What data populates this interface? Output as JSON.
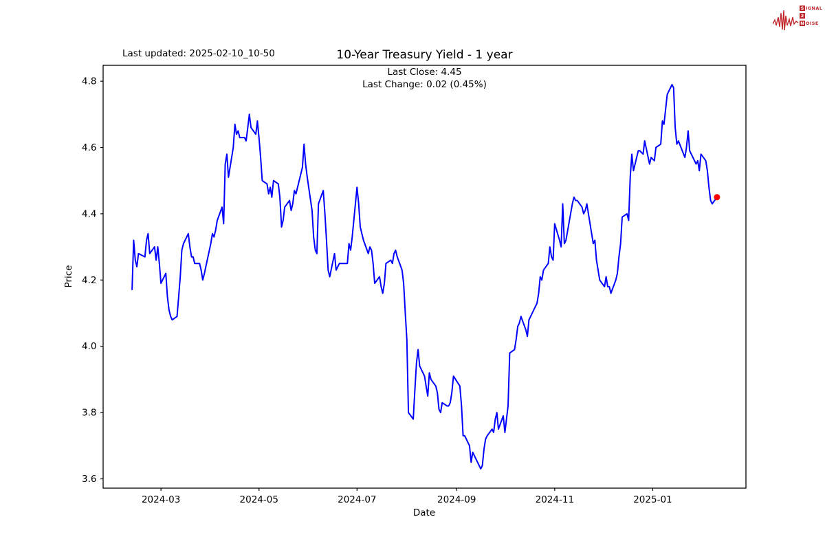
{
  "page": {
    "last_updated": "Last updated: 2025-02-10_10-50",
    "title": "10-Year Treasury Yield - 1 year",
    "subtitle_close": "Last Close: 4.45",
    "subtitle_change": "Last Change: 0.02 (0.45%)"
  },
  "logo": {
    "box1": "S",
    "rest1": "IGNAL",
    "box2": "2",
    "box3": "N",
    "rest3": "OISE",
    "color": "#c1272d"
  },
  "chart_data": {
    "type": "line",
    "title": "10-Year Treasury Yield - 1 year",
    "subtitle": [
      "Last Close: 4.45",
      "Last Change: 0.02 (0.45%)"
    ],
    "xlabel": "Date",
    "ylabel": "Price",
    "grid": false,
    "line_color": "#0000ff",
    "last_point_color": "#ff0000",
    "last_close": 4.45,
    "last_change": 0.02,
    "last_change_pct": "0.45%",
    "ylim": [
      3.572,
      4.848
    ],
    "xlim": [
      "2024-01-25",
      "2025-02-28"
    ],
    "y_ticks": [
      3.6,
      3.8,
      4.0,
      4.2,
      4.4,
      4.6,
      4.8
    ],
    "x_ticks": [
      {
        "label": "2024-03",
        "date": "2024-03-01"
      },
      {
        "label": "2024-05",
        "date": "2024-05-01"
      },
      {
        "label": "2024-07",
        "date": "2024-07-01"
      },
      {
        "label": "2024-09",
        "date": "2024-09-01"
      },
      {
        "label": "2024-11",
        "date": "2024-11-01"
      },
      {
        "label": "2025-01",
        "date": "2025-01-01"
      }
    ],
    "dates": [
      "2024-02-12",
      "2024-02-13",
      "2024-02-14",
      "2024-02-15",
      "2024-02-16",
      "2024-02-20",
      "2024-02-21",
      "2024-02-22",
      "2024-02-23",
      "2024-02-26",
      "2024-02-27",
      "2024-02-28",
      "2024-02-29",
      "2024-03-01",
      "2024-03-04",
      "2024-03-05",
      "2024-03-06",
      "2024-03-07",
      "2024-03-08",
      "2024-03-11",
      "2024-03-12",
      "2024-03-13",
      "2024-03-14",
      "2024-03-15",
      "2024-03-18",
      "2024-03-19",
      "2024-03-20",
      "2024-03-21",
      "2024-03-22",
      "2024-03-25",
      "2024-03-26",
      "2024-03-27",
      "2024-03-28",
      "2024-04-01",
      "2024-04-02",
      "2024-04-03",
      "2024-04-04",
      "2024-04-05",
      "2024-04-08",
      "2024-04-09",
      "2024-04-10",
      "2024-04-11",
      "2024-04-12",
      "2024-04-15",
      "2024-04-16",
      "2024-04-17",
      "2024-04-18",
      "2024-04-19",
      "2024-04-22",
      "2024-04-23",
      "2024-04-24",
      "2024-04-25",
      "2024-04-26",
      "2024-04-29",
      "2024-04-30",
      "2024-05-01",
      "2024-05-02",
      "2024-05-03",
      "2024-05-06",
      "2024-05-07",
      "2024-05-08",
      "2024-05-09",
      "2024-05-10",
      "2024-05-13",
      "2024-05-14",
      "2024-05-15",
      "2024-05-16",
      "2024-05-17",
      "2024-05-20",
      "2024-05-21",
      "2024-05-22",
      "2024-05-23",
      "2024-05-24",
      "2024-05-28",
      "2024-05-29",
      "2024-05-30",
      "2024-05-31",
      "2024-06-03",
      "2024-06-04",
      "2024-06-05",
      "2024-06-06",
      "2024-06-07",
      "2024-06-10",
      "2024-06-11",
      "2024-06-12",
      "2024-06-13",
      "2024-06-14",
      "2024-06-17",
      "2024-06-18",
      "2024-06-20",
      "2024-06-21",
      "2024-06-24",
      "2024-06-25",
      "2024-06-26",
      "2024-06-27",
      "2024-06-28",
      "2024-07-01",
      "2024-07-02",
      "2024-07-03",
      "2024-07-05",
      "2024-07-08",
      "2024-07-09",
      "2024-07-10",
      "2024-07-11",
      "2024-07-12",
      "2024-07-15",
      "2024-07-16",
      "2024-07-17",
      "2024-07-18",
      "2024-07-19",
      "2024-07-22",
      "2024-07-23",
      "2024-07-24",
      "2024-07-25",
      "2024-07-26",
      "2024-07-29",
      "2024-07-30",
      "2024-07-31",
      "2024-08-01",
      "2024-08-02",
      "2024-08-05",
      "2024-08-06",
      "2024-08-07",
      "2024-08-08",
      "2024-08-09",
      "2024-08-12",
      "2024-08-13",
      "2024-08-14",
      "2024-08-15",
      "2024-08-16",
      "2024-08-19",
      "2024-08-20",
      "2024-08-21",
      "2024-08-22",
      "2024-08-23",
      "2024-08-26",
      "2024-08-27",
      "2024-08-28",
      "2024-08-29",
      "2024-08-30",
      "2024-09-03",
      "2024-09-04",
      "2024-09-05",
      "2024-09-06",
      "2024-09-09",
      "2024-09-10",
      "2024-09-11",
      "2024-09-12",
      "2024-09-13",
      "2024-09-16",
      "2024-09-17",
      "2024-09-18",
      "2024-09-19",
      "2024-09-20",
      "2024-09-23",
      "2024-09-24",
      "2024-09-25",
      "2024-09-26",
      "2024-09-27",
      "2024-09-30",
      "2024-10-01",
      "2024-10-02",
      "2024-10-03",
      "2024-10-04",
      "2024-10-07",
      "2024-10-08",
      "2024-10-09",
      "2024-10-10",
      "2024-10-11",
      "2024-10-14",
      "2024-10-15",
      "2024-10-16",
      "2024-10-17",
      "2024-10-18",
      "2024-10-21",
      "2024-10-22",
      "2024-10-23",
      "2024-10-24",
      "2024-10-25",
      "2024-10-28",
      "2024-10-29",
      "2024-10-30",
      "2024-10-31",
      "2024-11-01",
      "2024-11-04",
      "2024-11-05",
      "2024-11-06",
      "2024-11-07",
      "2024-11-08",
      "2024-11-12",
      "2024-11-13",
      "2024-11-14",
      "2024-11-15",
      "2024-11-18",
      "2024-11-19",
      "2024-11-20",
      "2024-11-21",
      "2024-11-22",
      "2024-11-25",
      "2024-11-26",
      "2024-11-27",
      "2024-11-29",
      "2024-12-02",
      "2024-12-03",
      "2024-12-04",
      "2024-12-05",
      "2024-12-06",
      "2024-12-09",
      "2024-12-10",
      "2024-12-11",
      "2024-12-12",
      "2024-12-13",
      "2024-12-16",
      "2024-12-17",
      "2024-12-18",
      "2024-12-19",
      "2024-12-20",
      "2024-12-23",
      "2024-12-24",
      "2024-12-26",
      "2024-12-27",
      "2024-12-30",
      "2024-12-31",
      "2025-01-02",
      "2025-01-03",
      "2025-01-06",
      "2025-01-07",
      "2025-01-08",
      "2025-01-10",
      "2025-01-13",
      "2025-01-14",
      "2025-01-15",
      "2025-01-16",
      "2025-01-17",
      "2025-01-21",
      "2025-01-22",
      "2025-01-23",
      "2025-01-24",
      "2025-01-27",
      "2025-01-28",
      "2025-01-29",
      "2025-01-30",
      "2025-01-31",
      "2025-02-03",
      "2025-02-04",
      "2025-02-05",
      "2025-02-06",
      "2025-02-07",
      "2025-02-10"
    ],
    "values": [
      4.17,
      4.32,
      4.26,
      4.24,
      4.28,
      4.27,
      4.32,
      4.34,
      4.28,
      4.3,
      4.26,
      4.3,
      4.25,
      4.19,
      4.22,
      4.15,
      4.11,
      4.09,
      4.08,
      4.09,
      4.15,
      4.21,
      4.29,
      4.31,
      4.34,
      4.3,
      4.27,
      4.27,
      4.25,
      4.25,
      4.23,
      4.2,
      4.22,
      4.31,
      4.34,
      4.33,
      4.35,
      4.38,
      4.42,
      4.37,
      4.55,
      4.58,
      4.51,
      4.6,
      4.67,
      4.64,
      4.65,
      4.63,
      4.63,
      4.62,
      4.66,
      4.7,
      4.66,
      4.64,
      4.68,
      4.63,
      4.57,
      4.5,
      4.49,
      4.46,
      4.48,
      4.45,
      4.5,
      4.49,
      4.45,
      4.36,
      4.38,
      4.42,
      4.44,
      4.41,
      4.43,
      4.47,
      4.46,
      4.54,
      4.61,
      4.55,
      4.51,
      4.41,
      4.33,
      4.29,
      4.28,
      4.43,
      4.47,
      4.4,
      4.32,
      4.23,
      4.21,
      4.28,
      4.23,
      4.25,
      4.25,
      4.25,
      4.25,
      4.31,
      4.29,
      4.33,
      4.48,
      4.43,
      4.36,
      4.32,
      4.28,
      4.3,
      4.29,
      4.25,
      4.19,
      4.21,
      4.18,
      4.16,
      4.19,
      4.25,
      4.26,
      4.25,
      4.28,
      4.29,
      4.27,
      4.23,
      4.19,
      4.1,
      4.02,
      3.8,
      3.78,
      3.87,
      3.95,
      3.99,
      3.94,
      3.91,
      3.88,
      3.85,
      3.92,
      3.9,
      3.88,
      3.86,
      3.81,
      3.8,
      3.83,
      3.82,
      3.82,
      3.83,
      3.86,
      3.91,
      3.88,
      3.82,
      3.73,
      3.73,
      3.7,
      3.65,
      3.68,
      3.67,
      3.66,
      3.63,
      3.64,
      3.69,
      3.72,
      3.73,
      3.75,
      3.74,
      3.78,
      3.8,
      3.75,
      3.79,
      3.74,
      3.78,
      3.82,
      3.98,
      3.99,
      4.02,
      4.06,
      4.07,
      4.09,
      4.05,
      4.03,
      4.08,
      4.09,
      4.1,
      4.13,
      4.16,
      4.21,
      4.2,
      4.23,
      4.25,
      4.3,
      4.27,
      4.26,
      4.37,
      4.32,
      4.3,
      4.43,
      4.31,
      4.32,
      4.43,
      4.45,
      4.44,
      4.44,
      4.42,
      4.4,
      4.41,
      4.43,
      4.4,
      4.31,
      4.32,
      4.26,
      4.2,
      4.18,
      4.21,
      4.18,
      4.18,
      4.16,
      4.2,
      4.22,
      4.27,
      4.31,
      4.39,
      4.4,
      4.38,
      4.51,
      4.58,
      4.53,
      4.59,
      4.59,
      4.58,
      4.62,
      4.55,
      4.57,
      4.56,
      4.6,
      4.61,
      4.68,
      4.67,
      4.76,
      4.79,
      4.78,
      4.66,
      4.61,
      4.62,
      4.57,
      4.6,
      4.65,
      4.59,
      4.56,
      4.55,
      4.56,
      4.53,
      4.58,
      4.56,
      4.53,
      4.48,
      4.44,
      4.43,
      4.45
    ]
  }
}
